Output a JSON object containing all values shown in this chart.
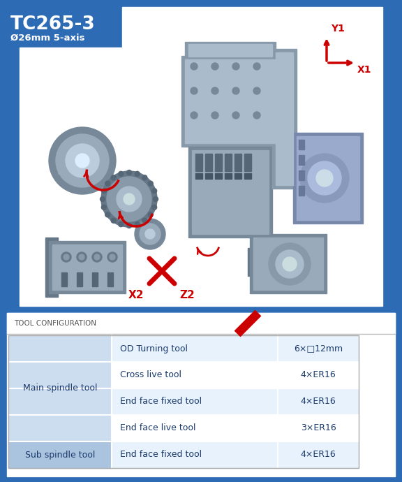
{
  "title": "TC265-3",
  "subtitle": "Ø26mm 5-axis",
  "bg_blue": "#2d6bb5",
  "bg_white": "#ffffff",
  "bg_light_blue": "#ccddf0",
  "bg_mid_blue": "#aac4e0",
  "table_header": "TOOL CONFIGURATION",
  "table_rows": [
    [
      "Main spindle tool",
      "OD Turning tool",
      "6×□12mm"
    ],
    [
      "Main spindle tool",
      "Cross live tool",
      "4×ER16"
    ],
    [
      "Main spindle tool",
      "End face fixed tool",
      "4×ER16"
    ],
    [
      "Main spindle tool",
      "End face live tool",
      "3×ER16"
    ],
    [
      "Sub spindle tool",
      "End face fixed tool",
      "4×ER16"
    ]
  ],
  "red_color": "#cc0000",
  "dark_blue_text": "#1a3a6b",
  "cell_white": "#ffffff",
  "cell_light": "#e8f2fc",
  "cell_mid": "#d6e8f7"
}
